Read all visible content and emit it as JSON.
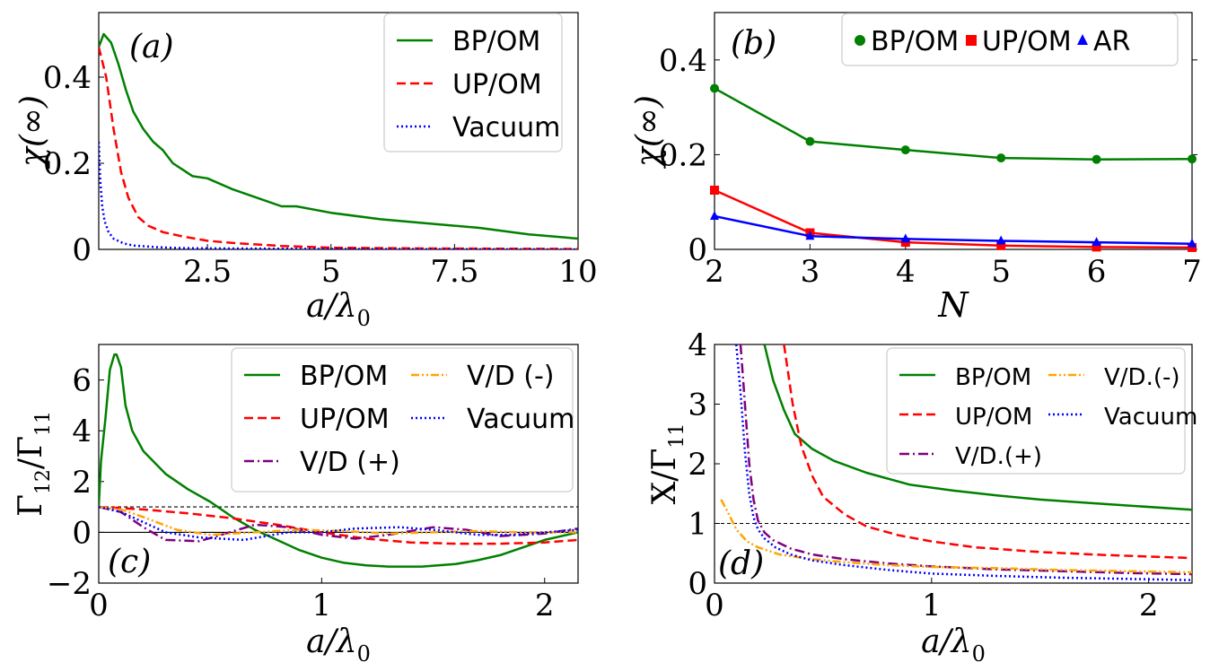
{
  "chart_data": [
    {
      "type": "line",
      "panel_label": "(a)",
      "xlabel": "a/λ",
      "xlabel_sub": "0",
      "ylabel": "χ(∞)",
      "xlim": [
        0.3,
        10
      ],
      "ylim": [
        0,
        0.55
      ],
      "xticks": [
        2.5,
        5,
        7.5,
        10
      ],
      "xtick_labels": [
        "2.5",
        "5",
        "7.5",
        "10"
      ],
      "yticks": [
        0,
        0.2,
        0.4
      ],
      "ytick_labels": [
        "0",
        "0.2",
        "0.4"
      ],
      "legend": {
        "placement": "top-right",
        "columns": 1
      },
      "series": [
        {
          "name": "BP/OM",
          "color": "#008000",
          "dash": "solid",
          "x": [
            0.3,
            0.4,
            0.55,
            0.7,
            0.85,
            1.0,
            1.2,
            1.4,
            1.6,
            1.8,
            2.0,
            2.2,
            2.5,
            3.0,
            3.5,
            4.0,
            4.3,
            5.0,
            6.0,
            7.0,
            8.0,
            9.0,
            10.0
          ],
          "y": [
            0.47,
            0.5,
            0.48,
            0.43,
            0.37,
            0.32,
            0.28,
            0.25,
            0.23,
            0.2,
            0.185,
            0.17,
            0.165,
            0.14,
            0.12,
            0.1,
            0.1,
            0.085,
            0.07,
            0.06,
            0.05,
            0.035,
            0.025
          ]
        },
        {
          "name": "UP/OM",
          "color": "#ff0000",
          "dash": "dashed",
          "x": [
            0.3,
            0.45,
            0.6,
            0.75,
            0.9,
            1.1,
            1.3,
            1.6,
            2.0,
            2.5,
            3.0,
            4.0,
            5.0,
            7.0,
            10.0
          ],
          "y": [
            0.47,
            0.4,
            0.28,
            0.18,
            0.12,
            0.075,
            0.055,
            0.04,
            0.03,
            0.02,
            0.015,
            0.008,
            0.004,
            0.002,
            0.001
          ]
        },
        {
          "name": "Vacuum",
          "color": "#0000ff",
          "dash": "dotted",
          "x": [
            0.3,
            0.33,
            0.37,
            0.42,
            0.5,
            0.6,
            0.8,
            1.0,
            1.5,
            2.0,
            3.0,
            5.0,
            10.0
          ],
          "y": [
            0.25,
            0.16,
            0.1,
            0.065,
            0.04,
            0.025,
            0.014,
            0.009,
            0.005,
            0.003,
            0.002,
            0.001,
            0.0
          ]
        }
      ]
    },
    {
      "type": "line",
      "panel_label": "(b)",
      "xlabel": "N",
      "ylabel": "χ(∞)",
      "xlim": [
        2,
        7
      ],
      "ylim": [
        0,
        0.5
      ],
      "xticks": [
        2,
        3,
        4,
        5,
        6,
        7
      ],
      "xtick_labels": [
        "2",
        "3",
        "4",
        "5",
        "6",
        "7"
      ],
      "yticks": [
        0,
        0.2,
        0.4
      ],
      "ytick_labels": [
        "0",
        "0.2",
        "0.4"
      ],
      "legend": {
        "placement": "top-right",
        "columns": 3
      },
      "x": [
        2,
        3,
        4,
        5,
        6,
        7
      ],
      "series": [
        {
          "name": "BP/OM",
          "color": "#008000",
          "marker": "circle",
          "y": [
            0.34,
            0.228,
            0.21,
            0.193,
            0.19,
            0.191
          ]
        },
        {
          "name": "UP/OM",
          "color": "#ff0000",
          "marker": "square",
          "y": [
            0.125,
            0.035,
            0.015,
            0.008,
            0.005,
            0.004
          ]
        },
        {
          "name": "AR",
          "color": "#0000ff",
          "marker": "triangle",
          "y": [
            0.07,
            0.028,
            0.022,
            0.018,
            0.015,
            0.012
          ]
        }
      ]
    },
    {
      "type": "line",
      "panel_label": "(c)",
      "xlabel": "a/λ",
      "xlabel_sub": "0",
      "ylabel": "Γ/Γ",
      "ylabel_sub1": "12",
      "ylabel_sub2": "11",
      "xlim": [
        0,
        2.15
      ],
      "ylim": [
        -2,
        7.4
      ],
      "xticks": [
        0,
        1,
        2
      ],
      "xtick_labels": [
        "0",
        "1",
        "2"
      ],
      "yticks": [
        -2,
        0,
        2,
        4,
        6
      ],
      "ytick_labels": [
        "−2",
        "0",
        "2",
        "4",
        "6"
      ],
      "reference_lines": [
        1,
        0
      ],
      "legend": {
        "placement": "top-right",
        "columns": 2
      },
      "series": [
        {
          "name": "BP/OM",
          "color": "#008000",
          "dash": "solid",
          "x": [
            0.0,
            0.01,
            0.03,
            0.05,
            0.07,
            0.08,
            0.1,
            0.12,
            0.15,
            0.2,
            0.3,
            0.4,
            0.5,
            0.6,
            0.7,
            0.8,
            0.9,
            1.0,
            1.1,
            1.2,
            1.3,
            1.45,
            1.6,
            1.7,
            1.8,
            1.9,
            2.0,
            2.15
          ],
          "y": [
            1.0,
            2.8,
            4.5,
            6.4,
            7.0,
            7.0,
            6.5,
            5.0,
            4.0,
            3.2,
            2.3,
            1.7,
            1.2,
            0.6,
            0.1,
            -0.3,
            -0.7,
            -1.0,
            -1.2,
            -1.3,
            -1.35,
            -1.35,
            -1.25,
            -1.1,
            -0.9,
            -0.6,
            -0.3,
            0.0
          ]
        },
        {
          "name": "UP/OM",
          "color": "#ff0000",
          "dash": "dashed",
          "x": [
            0.0,
            0.2,
            0.4,
            0.6,
            0.8,
            1.0,
            1.2,
            1.4,
            1.6,
            1.8,
            2.0,
            2.15
          ],
          "y": [
            1.0,
            0.9,
            0.75,
            0.55,
            0.3,
            0.0,
            -0.25,
            -0.4,
            -0.45,
            -0.45,
            -0.4,
            -0.3
          ]
        },
        {
          "name": "V/D (+)",
          "color": "#800080",
          "dash": "dashdot",
          "x": [
            0.0,
            0.1,
            0.2,
            0.3,
            0.45,
            0.55,
            0.7,
            0.85,
            1.0,
            1.15,
            1.3,
            1.5,
            1.65,
            1.8,
            2.0,
            2.15
          ],
          "y": [
            1.0,
            0.8,
            0.2,
            -0.3,
            -0.35,
            -0.1,
            0.3,
            0.2,
            -0.1,
            -0.25,
            -0.1,
            0.2,
            0.1,
            -0.15,
            -0.05,
            0.15
          ]
        },
        {
          "name": "V/D (-)",
          "color": "#ffa500",
          "dash": "dashdotdot",
          "x": [
            0.0,
            0.1,
            0.2,
            0.35,
            0.5,
            0.7,
            0.9,
            1.1,
            1.3,
            1.5,
            1.7,
            1.9,
            2.15
          ],
          "y": [
            1.0,
            0.9,
            0.6,
            0.1,
            -0.1,
            0.0,
            0.1,
            0.05,
            -0.05,
            0.0,
            0.05,
            0.0,
            0.0
          ]
        },
        {
          "name": "Vacuum",
          "color": "#0000ff",
          "dash": "dotted",
          "x": [
            0.0,
            0.1,
            0.2,
            0.3,
            0.45,
            0.65,
            0.85,
            1.0,
            1.15,
            1.35,
            1.5,
            1.7,
            1.85,
            2.0,
            2.15
          ],
          "y": [
            1.0,
            0.8,
            0.4,
            0.0,
            -0.2,
            -0.3,
            0.0,
            0.0,
            0.15,
            0.2,
            0.1,
            -0.1,
            -0.1,
            0.0,
            0.1
          ]
        }
      ]
    },
    {
      "type": "line",
      "panel_label": "(d)",
      "xlabel": "a/λ",
      "xlabel_sub": "0",
      "ylabel": "X/Γ",
      "ylabel_sub2": "11",
      "xlim": [
        0,
        2.2
      ],
      "ylim": [
        0,
        4
      ],
      "xticks": [
        0,
        1,
        2
      ],
      "xtick_labels": [
        "0",
        "1",
        "2"
      ],
      "yticks": [
        0,
        1,
        2,
        3,
        4
      ],
      "ytick_labels": [
        "0",
        "1",
        "2",
        "3",
        "4"
      ],
      "reference_lines": [
        1
      ],
      "legend": {
        "placement": "top-right",
        "columns": 2
      },
      "series": [
        {
          "name": "BP/OM",
          "color": "#008000",
          "dash": "solid",
          "x": [
            0.23,
            0.27,
            0.32,
            0.37,
            0.45,
            0.55,
            0.7,
            0.9,
            1.1,
            1.3,
            1.5,
            1.7,
            1.9,
            2.2
          ],
          "y": [
            4.0,
            3.4,
            2.9,
            2.5,
            2.25,
            2.05,
            1.85,
            1.65,
            1.55,
            1.47,
            1.4,
            1.35,
            1.3,
            1.23
          ]
        },
        {
          "name": "UP/OM",
          "color": "#ff0000",
          "dash": "dashed",
          "x": [
            0.32,
            0.36,
            0.4,
            0.45,
            0.5,
            0.6,
            0.7,
            0.85,
            1.0,
            1.2,
            1.5,
            1.8,
            2.2
          ],
          "y": [
            4.0,
            3.0,
            2.3,
            1.8,
            1.45,
            1.15,
            0.95,
            0.8,
            0.7,
            0.6,
            0.52,
            0.47,
            0.42
          ]
        },
        {
          "name": "V/D.(+)",
          "color": "#800080",
          "dash": "dashdot",
          "x": [
            0.12,
            0.14,
            0.16,
            0.18,
            0.2,
            0.23,
            0.27,
            0.35,
            0.45,
            0.6,
            0.8,
            1.0,
            1.3,
            1.6,
            1.9,
            2.2
          ],
          "y": [
            4.0,
            3.0,
            2.0,
            1.4,
            1.05,
            0.85,
            0.72,
            0.58,
            0.48,
            0.4,
            0.33,
            0.28,
            0.23,
            0.2,
            0.17,
            0.15
          ]
        },
        {
          "name": "V/D.(-)",
          "color": "#ffa500",
          "dash": "dashdotdot",
          "x": [
            0.03,
            0.06,
            0.1,
            0.15,
            0.2,
            0.3,
            0.45,
            0.6,
            0.8,
            1.0,
            1.3,
            1.6,
            1.9,
            2.2
          ],
          "y": [
            1.4,
            1.2,
            0.9,
            0.7,
            0.6,
            0.48,
            0.4,
            0.35,
            0.3,
            0.27,
            0.25,
            0.22,
            0.2,
            0.18
          ]
        },
        {
          "name": "Vacuum",
          "color": "#0000ff",
          "dash": "dotted",
          "x": [
            0.1,
            0.12,
            0.14,
            0.16,
            0.18,
            0.2,
            0.23,
            0.28,
            0.35,
            0.45,
            0.6,
            0.8,
            1.0,
            1.3,
            1.6,
            1.9,
            2.2
          ],
          "y": [
            4.0,
            3.2,
            2.2,
            1.5,
            1.1,
            0.9,
            0.75,
            0.6,
            0.48,
            0.38,
            0.3,
            0.22,
            0.16,
            0.12,
            0.09,
            0.07,
            0.05
          ]
        }
      ]
    }
  ]
}
